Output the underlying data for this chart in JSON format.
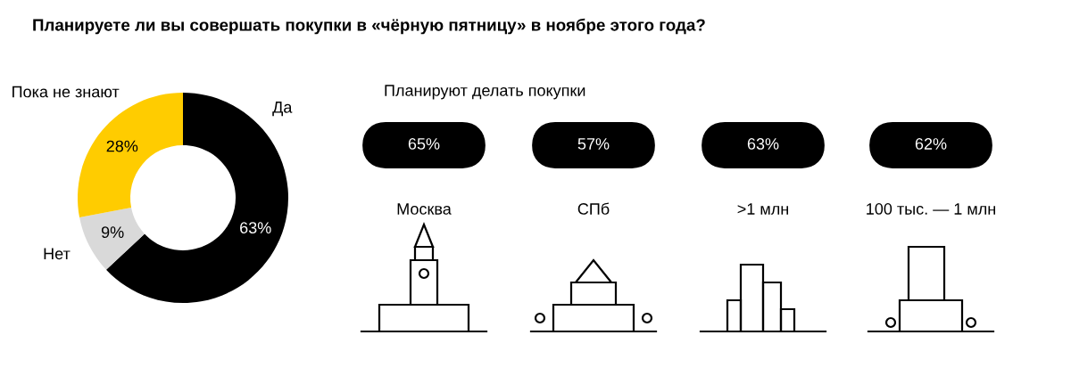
{
  "chart_data": [
    {
      "type": "donut",
      "title": "Планируете ли вы совершать покупки в «чёрную пятницу» в ноябре этого года?",
      "categories": [
        "Да",
        "Нет",
        "Пока не знают"
      ],
      "values": [
        63,
        9,
        28
      ],
      "colors": [
        "#000000",
        "#d9d9d9",
        "#ffcc00"
      ],
      "value_labels": [
        "63%",
        "9%",
        "28%"
      ]
    },
    {
      "type": "other",
      "title": "Планируют делать покупки",
      "categories": [
        "Москва",
        "СПб",
        ">1 млн",
        "100 тыс. — 1 млн"
      ],
      "values": [
        65,
        57,
        63,
        62
      ],
      "value_labels": [
        "65%",
        "57%",
        "63%",
        "62%"
      ]
    }
  ]
}
